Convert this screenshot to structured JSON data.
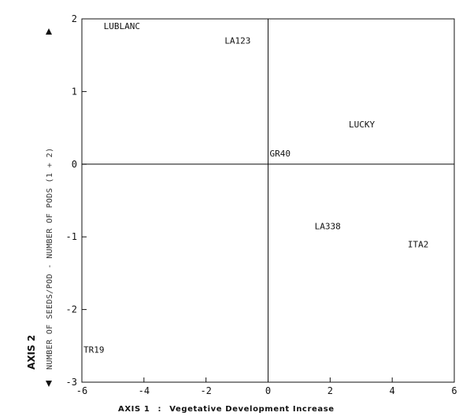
{
  "chart_data": {
    "type": "scatter",
    "title": "",
    "xlabel_axis": "AXIS 1",
    "xlabel_sep": ":",
    "xlabel_desc": "Vegetative Development Increase",
    "ylabel_axis": "AXIS 2",
    "ylabel_desc": "NUMBER OF SEEDS/POD  -  NUMBER OF PODS (1 + 2)",
    "xlim": [
      -6,
      6
    ],
    "ylim": [
      -3,
      2
    ],
    "xticks": [
      -6,
      -4,
      -2,
      0,
      2,
      4,
      6
    ],
    "yticks": [
      -3,
      -2,
      -1,
      0,
      1,
      2
    ],
    "xtick_labels": [
      "-6",
      "-4",
      "-2",
      "0",
      "2",
      "4",
      "6"
    ],
    "ytick_labels": [
      "-3",
      "-2",
      "-1",
      "0",
      "1",
      "2"
    ],
    "grid": false,
    "reference_lines": {
      "x": 0,
      "y": 0
    },
    "points": [
      {
        "label": "LUBLANC",
        "x": -5.3,
        "y": 1.9
      },
      {
        "label": "LA123",
        "x": -1.4,
        "y": 1.7
      },
      {
        "label": "LUCKY",
        "x": 2.6,
        "y": 0.55
      },
      {
        "label": "GR40",
        "x": 0.05,
        "y": 0.15
      },
      {
        "label": "LA338",
        "x": 1.5,
        "y": -0.85
      },
      {
        "label": "ITA2",
        "x": 4.5,
        "y": -1.1
      },
      {
        "label": "TR19",
        "x": -5.95,
        "y": -2.55
      }
    ]
  }
}
